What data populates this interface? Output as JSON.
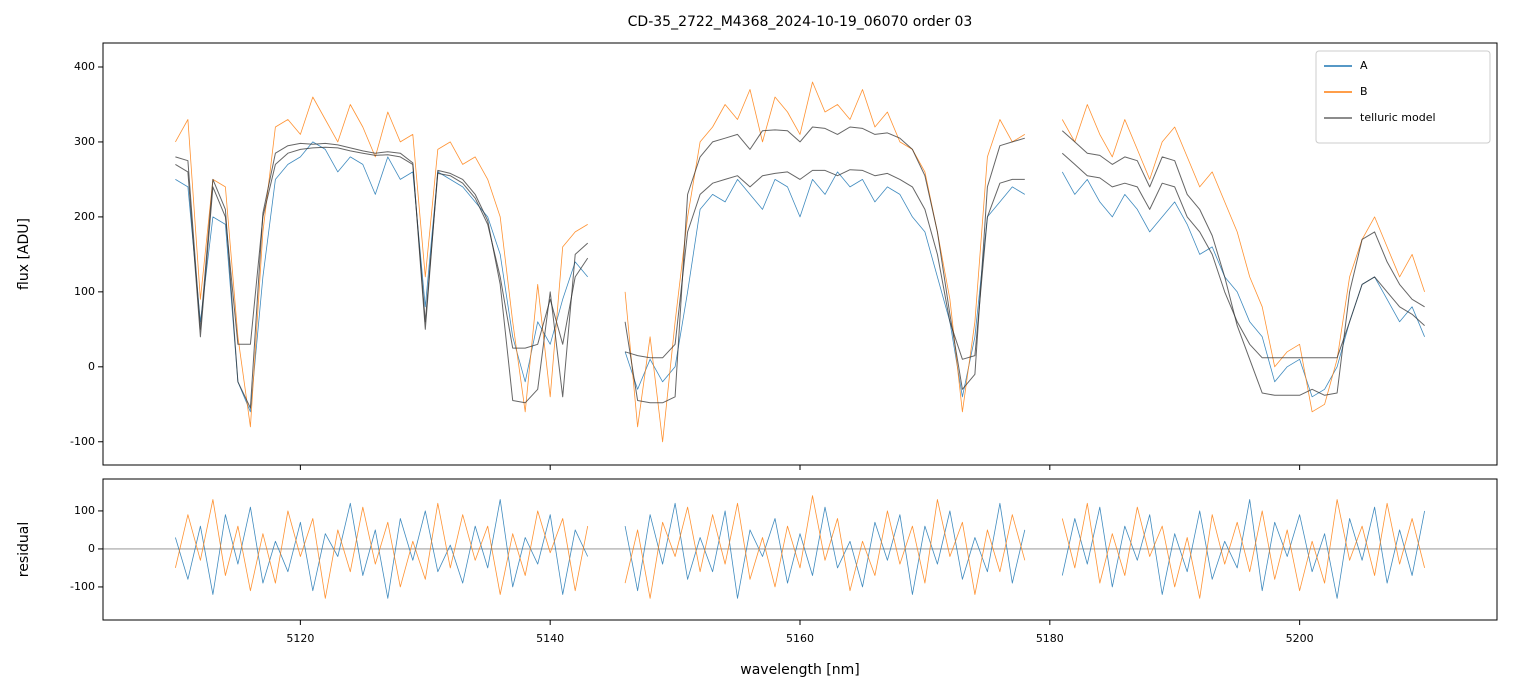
{
  "chart_data": [
    {
      "type": "line",
      "title": "CD-35_2722_M4368_2024-10-19_06070  order 03",
      "ylabel": "flux [ADU]",
      "x": [
        5110,
        5111,
        5112,
        5113,
        5114,
        5115,
        5116,
        5117,
        5118,
        5119,
        5120,
        5121,
        5122,
        5123,
        5124,
        5125,
        5126,
        5127,
        5128,
        5129,
        5130,
        5131,
        5132,
        5133,
        5134,
        5135,
        5136,
        5137,
        5138,
        5139,
        5140,
        5141,
        5142,
        5143,
        5144,
        5145,
        5146,
        5147,
        5148,
        5149,
        5150,
        5151,
        5152,
        5153,
        5154,
        5155,
        5156,
        5157,
        5158,
        5159,
        5160,
        5161,
        5162,
        5163,
        5164,
        5165,
        5166,
        5167,
        5168,
        5169,
        5170,
        5171,
        5172,
        5173,
        5174,
        5175,
        5176,
        5177,
        5178,
        5179,
        5180,
        5181,
        5182,
        5183,
        5184,
        5185,
        5186,
        5187,
        5188,
        5189,
        5190,
        5191,
        5192,
        5193,
        5194,
        5195,
        5196,
        5197,
        5198,
        5199,
        5200,
        5201,
        5202,
        5203,
        5204,
        5205,
        5206,
        5207,
        5208,
        5209,
        5210
      ],
      "series": [
        {
          "name": "A",
          "color": "#1f77b4",
          "values": [
            250,
            240,
            60,
            200,
            190,
            -20,
            -60,
            120,
            250,
            270,
            280,
            300,
            290,
            260,
            280,
            270,
            230,
            280,
            250,
            260,
            80,
            260,
            250,
            240,
            220,
            200,
            150,
            40,
            -20,
            60,
            30,
            90,
            140,
            120,
            null,
            null,
            20,
            -30,
            10,
            -20,
            0,
            100,
            210,
            230,
            220,
            250,
            230,
            210,
            250,
            240,
            200,
            250,
            230,
            260,
            240,
            250,
            220,
            240,
            230,
            200,
            180,
            120,
            60,
            -40,
            40,
            200,
            220,
            240,
            230,
            null,
            null,
            260,
            230,
            250,
            220,
            200,
            230,
            210,
            180,
            200,
            220,
            190,
            150,
            160,
            120,
            100,
            60,
            40,
            -20,
            0,
            10,
            -40,
            -30,
            0,
            60,
            110,
            120,
            90,
            60,
            80,
            40
          ]
        },
        {
          "name": "B",
          "color": "#ff7f0e",
          "values": [
            300,
            330,
            90,
            250,
            240,
            40,
            -80,
            180,
            320,
            330,
            310,
            360,
            330,
            300,
            350,
            320,
            280,
            340,
            300,
            310,
            120,
            290,
            300,
            270,
            280,
            250,
            200,
            60,
            -60,
            110,
            -40,
            160,
            180,
            190,
            null,
            null,
            100,
            -80,
            40,
            -100,
            60,
            200,
            300,
            320,
            350,
            330,
            370,
            300,
            360,
            340,
            310,
            380,
            340,
            350,
            330,
            370,
            320,
            340,
            300,
            290,
            260,
            180,
            90,
            -60,
            60,
            280,
            330,
            300,
            310,
            null,
            null,
            330,
            300,
            350,
            310,
            280,
            330,
            290,
            250,
            300,
            320,
            280,
            240,
            260,
            220,
            180,
            120,
            80,
            0,
            20,
            30,
            -60,
            -50,
            10,
            120,
            170,
            200,
            160,
            120,
            150,
            100
          ]
        },
        {
          "name": "telluric model",
          "color": "#333333",
          "values": [
            270,
            260,
            40,
            240,
            200,
            30,
            30,
            200,
            270,
            285,
            290,
            292,
            293,
            292,
            288,
            285,
            282,
            283,
            280,
            270,
            60,
            258,
            255,
            245,
            225,
            190,
            120,
            25,
            25,
            30,
            90,
            30,
            120,
            145,
            null,
            null,
            20,
            15,
            12,
            12,
            30,
            180,
            230,
            245,
            250,
            255,
            240,
            255,
            258,
            260,
            250,
            262,
            262,
            255,
            263,
            262,
            255,
            258,
            250,
            240,
            210,
            150,
            60,
            10,
            15,
            200,
            245,
            250,
            250,
            null,
            null,
            285,
            270,
            255,
            252,
            240,
            245,
            240,
            210,
            245,
            240,
            200,
            180,
            150,
            100,
            60,
            30,
            12,
            12,
            12,
            12,
            12,
            12,
            12,
            60,
            110,
            120,
            100,
            80,
            70,
            55
          ]
        },
        {
          "color": "#333333",
          "values": [
            280,
            275,
            50,
            250,
            210,
            -20,
            -55,
            205,
            285,
            295,
            298,
            297,
            298,
            296,
            292,
            288,
            285,
            287,
            285,
            272,
            50,
            262,
            258,
            250,
            230,
            195,
            110,
            -45,
            -48,
            -30,
            100,
            -40,
            150,
            165,
            null,
            null,
            60,
            -45,
            -48,
            -48,
            -40,
            230,
            280,
            300,
            305,
            310,
            290,
            315,
            316,
            315,
            300,
            320,
            318,
            310,
            320,
            318,
            310,
            312,
            305,
            290,
            255,
            180,
            70,
            -30,
            -10,
            240,
            295,
            300,
            305,
            null,
            null,
            315,
            300,
            285,
            282,
            270,
            280,
            275,
            240,
            280,
            275,
            230,
            210,
            175,
            120,
            55,
            10,
            -35,
            -38,
            -38,
            -38,
            -30,
            -38,
            -35,
            100,
            170,
            180,
            140,
            110,
            90,
            80
          ]
        }
      ],
      "xlim": [
        5104.2,
        5215.8
      ],
      "xticks": [
        5120,
        5140,
        5160,
        5180,
        5200
      ],
      "ylim": [
        -131,
        432
      ],
      "yticks": [
        -100,
        0,
        100,
        200,
        300,
        400
      ],
      "legend": "upper right"
    },
    {
      "type": "line",
      "xlabel": "wavelength [nm]",
      "ylabel": "residual",
      "x": [
        5110,
        5111,
        5112,
        5113,
        5114,
        5115,
        5116,
        5117,
        5118,
        5119,
        5120,
        5121,
        5122,
        5123,
        5124,
        5125,
        5126,
        5127,
        5128,
        5129,
        5130,
        5131,
        5132,
        5133,
        5134,
        5135,
        5136,
        5137,
        5138,
        5139,
        5140,
        5141,
        5142,
        5143,
        5144,
        5145,
        5146,
        5147,
        5148,
        5149,
        5150,
        5151,
        5152,
        5153,
        5154,
        5155,
        5156,
        5157,
        5158,
        5159,
        5160,
        5161,
        5162,
        5163,
        5164,
        5165,
        5166,
        5167,
        5168,
        5169,
        5170,
        5171,
        5172,
        5173,
        5174,
        5175,
        5176,
        5177,
        5178,
        5179,
        5180,
        5181,
        5182,
        5183,
        5184,
        5185,
        5186,
        5187,
        5188,
        5189,
        5190,
        5191,
        5192,
        5193,
        5194,
        5195,
        5196,
        5197,
        5198,
        5199,
        5200,
        5201,
        5202,
        5203,
        5204,
        5205,
        5206,
        5207,
        5208,
        5209,
        5210
      ],
      "series": [
        {
          "color": "#1f77b4",
          "values": [
            30,
            -80,
            60,
            -120,
            90,
            -40,
            110,
            -90,
            20,
            -60,
            70,
            -110,
            40,
            -20,
            120,
            -70,
            50,
            -130,
            80,
            -30,
            100,
            -60,
            10,
            -90,
            60,
            -50,
            130,
            -100,
            30,
            -40,
            90,
            -120,
            50,
            -20,
            null,
            null,
            60,
            -110,
            90,
            -40,
            120,
            -80,
            30,
            -60,
            100,
            -130,
            50,
            -20,
            80,
            -90,
            40,
            -70,
            110,
            -50,
            20,
            -100,
            70,
            -30,
            90,
            -120,
            60,
            -40,
            100,
            -80,
            30,
            -60,
            120,
            -90,
            50,
            null,
            null,
            -70,
            80,
            -40,
            110,
            -100,
            60,
            -30,
            90,
            -120,
            40,
            -60,
            100,
            -80,
            20,
            -50,
            130,
            -110,
            70,
            -20,
            90,
            -60,
            40,
            -130,
            80,
            -30,
            110,
            -90,
            50,
            -70,
            100
          ]
        },
        {
          "color": "#ff7f0e",
          "values": [
            -50,
            90,
            -30,
            130,
            -70,
            60,
            -110,
            40,
            -90,
            100,
            -20,
            80,
            -130,
            50,
            -60,
            110,
            -40,
            70,
            -100,
            20,
            -80,
            120,
            -50,
            90,
            -30,
            60,
            -120,
            40,
            -70,
            100,
            -10,
            80,
            -110,
            60,
            null,
            null,
            -90,
            50,
            -130,
            70,
            -20,
            110,
            -60,
            90,
            -40,
            120,
            -80,
            30,
            -100,
            60,
            -50,
            140,
            -30,
            80,
            -110,
            20,
            -70,
            100,
            -40,
            60,
            -90,
            130,
            -20,
            70,
            -120,
            50,
            -60,
            90,
            -30,
            null,
            null,
            80,
            -50,
            120,
            -90,
            40,
            -70,
            110,
            -20,
            60,
            -100,
            30,
            -130,
            90,
            -40,
            70,
            -60,
            100,
            -80,
            50,
            -110,
            20,
            -90,
            130,
            -30,
            60,
            -70,
            120,
            -40,
            80,
            -50
          ]
        }
      ],
      "hline": 0,
      "xlim": [
        5104.2,
        5215.8
      ],
      "xticks": [
        5120,
        5140,
        5160,
        5180,
        5200
      ],
      "ylim": [
        -187,
        184
      ],
      "yticks": [
        -100,
        0,
        100
      ]
    }
  ]
}
